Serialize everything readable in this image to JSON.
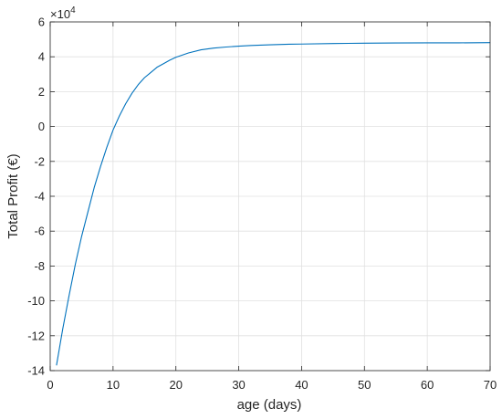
{
  "chart_data": {
    "type": "line",
    "title": "",
    "xlabel": "age (days)",
    "ylabel": "Total Profit (€)",
    "y_exponent_label": "×10",
    "y_exponent_power": "4",
    "xlim": [
      0,
      70
    ],
    "ylim": [
      -14,
      6
    ],
    "y_scale_factor": 10000,
    "xticks": [
      0,
      10,
      20,
      30,
      40,
      50,
      60,
      70
    ],
    "yticks": [
      -14,
      -12,
      -10,
      -8,
      -6,
      -4,
      -2,
      0,
      2,
      4,
      6
    ],
    "grid": true,
    "box": true,
    "series": [
      {
        "color": "#0072BD",
        "x": [
          1,
          2,
          3,
          4,
          5,
          6,
          7,
          8,
          9,
          10,
          11,
          12,
          13,
          14,
          15,
          16,
          17,
          18,
          19,
          20,
          22,
          24,
          26,
          28,
          30,
          32,
          35,
          38,
          40,
          45,
          50,
          55,
          60,
          65,
          70
        ],
        "y": [
          -13.7,
          -11.6,
          -9.7,
          -7.9,
          -6.3,
          -4.9,
          -3.5,
          -2.3,
          -1.2,
          -0.2,
          0.6,
          1.3,
          1.9,
          2.4,
          2.8,
          3.1,
          3.4,
          3.6,
          3.8,
          3.97,
          4.22,
          4.4,
          4.5,
          4.56,
          4.61,
          4.65,
          4.69,
          4.72,
          4.73,
          4.76,
          4.78,
          4.79,
          4.8,
          4.8,
          4.81
        ]
      }
    ]
  }
}
